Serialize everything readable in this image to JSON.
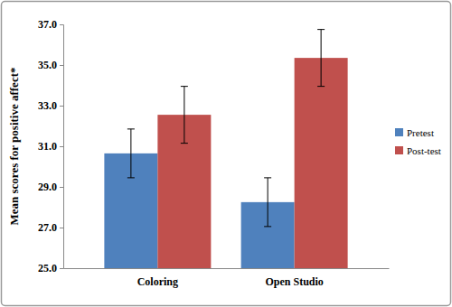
{
  "chart_data": {
    "type": "bar",
    "y_label": "Mean scores for positive affect*",
    "categories": [
      "Coloring",
      "Open Studio"
    ],
    "series": [
      {
        "name": "Pretest",
        "color": "#4f81bd",
        "values": [
          30.65,
          28.25
        ],
        "errors": [
          1.2,
          1.2
        ]
      },
      {
        "name": "Post-test",
        "color": "#c0504d",
        "values": [
          32.55,
          35.35
        ],
        "errors": [
          1.4,
          1.4
        ]
      }
    ],
    "ylim": [
      25,
      37
    ],
    "yticks": [
      {
        "value": 25,
        "label": "25.0"
      },
      {
        "value": 27,
        "label": "27.0"
      },
      {
        "value": 29,
        "label": "29.0"
      },
      {
        "value": 31,
        "label": "31.0"
      },
      {
        "value": 33,
        "label": "33.0"
      },
      {
        "value": 35,
        "label": "35.0"
      },
      {
        "value": 37,
        "label": "37.0"
      }
    ],
    "legend": "right",
    "grid": false
  }
}
